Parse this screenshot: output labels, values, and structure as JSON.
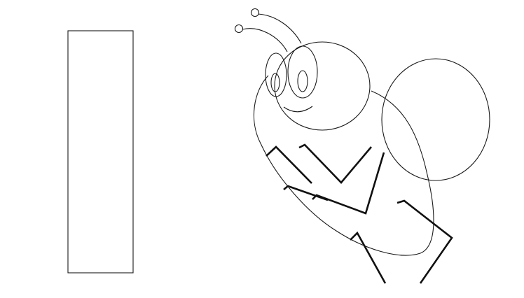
{
  "figure": {
    "background_color": "#ffffff",
    "stroke_color": "#111111",
    "elements": [
      "empty-rectangle",
      "cartoon-fly"
    ]
  }
}
